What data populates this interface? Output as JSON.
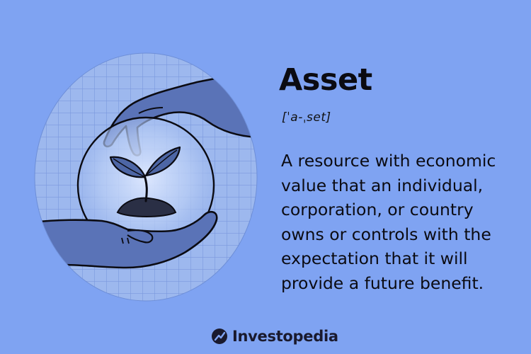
{
  "term": "Asset",
  "pronunciation": "[ˈa-ˌset]",
  "definition": "A resource with economic\nvalue that an individual,\ncorporation, or country\nowns or controls with the\nexpectation that it will\nprovide a future benefit.",
  "brand": "Investopedia",
  "colors": {
    "background": "#7fa3f2",
    "circle": "#9db8ee",
    "grid": "#7a98dd",
    "ink": "#0b0b12",
    "hand": "#5a73b7",
    "plant": "#4d66a5"
  }
}
